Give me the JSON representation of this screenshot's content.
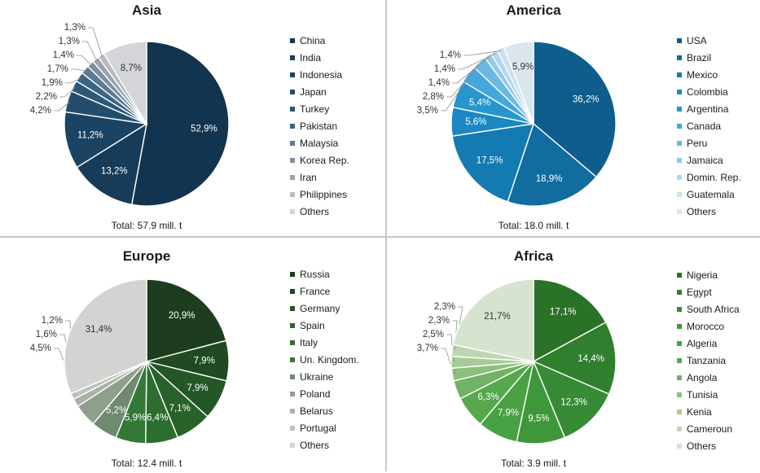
{
  "chart_data": [
    {
      "type": "pie",
      "title": "Asia",
      "total": "Total: 57.9 mill. t",
      "slices": [
        {
          "name": "China",
          "label": "52,9%",
          "value": 52.9,
          "color": "#13344f"
        },
        {
          "name": "India",
          "label": "13,2%",
          "value": 13.2,
          "color": "#173c5a"
        },
        {
          "name": "Indonesia",
          "label": "11,2%",
          "value": 11.2,
          "color": "#1b4464"
        },
        {
          "name": "Japan",
          "label": "4,2%",
          "value": 4.2,
          "color": "#234d6d"
        },
        {
          "name": "Turkey",
          "label": "2,2%",
          "value": 2.2,
          "color": "#2c5777"
        },
        {
          "name": "Pakistan",
          "label": "1,9%",
          "value": 1.9,
          "color": "#3b6584"
        },
        {
          "name": "Malaysia",
          "label": "1,7%",
          "value": 1.7,
          "color": "#5b7a95"
        },
        {
          "name": "Korea Rep.",
          "label": "1,4%",
          "value": 1.4,
          "color": "#7f8fa0"
        },
        {
          "name": "Iran",
          "label": "1,3%",
          "value": 1.3,
          "color": "#9aa2ab"
        },
        {
          "name": "Philippines",
          "label": "1,3%",
          "value": 1.3,
          "color": "#b7bcc1"
        },
        {
          "name": "Others",
          "label": "8,7%",
          "value": 8.7,
          "color": "#d3d5d8"
        }
      ]
    },
    {
      "type": "pie",
      "title": "America",
      "total": "Total: 18.0 mill. t",
      "slices": [
        {
          "name": "USA",
          "label": "36,2%",
          "value": 36.2,
          "color": "#0f5d8c"
        },
        {
          "name": "Brazil",
          "label": "18,9%",
          "value": 18.9,
          "color": "#116c9f"
        },
        {
          "name": "Mexico",
          "label": "17,5%",
          "value": 17.5,
          "color": "#137bb2"
        },
        {
          "name": "Colombia",
          "label": "5,6%",
          "value": 5.6,
          "color": "#1a88c2"
        },
        {
          "name": "Argentina",
          "label": "5,4%",
          "value": 5.4,
          "color": "#2796cf"
        },
        {
          "name": "Canada",
          "label": "3,5%",
          "value": 3.5,
          "color": "#45a7dd"
        },
        {
          "name": "Peru",
          "label": "2,8%",
          "value": 2.8,
          "color": "#6bb8e4"
        },
        {
          "name": "Jamaica",
          "label": "1,4%",
          "value": 1.4,
          "color": "#93c8e8"
        },
        {
          "name": "Domin. Rep.",
          "label": "1,4%",
          "value": 1.4,
          "color": "#b2d6ec"
        },
        {
          "name": "Guatemala",
          "label": "1,4%",
          "value": 1.4,
          "color": "#c8e0ef"
        },
        {
          "name": "Others",
          "label": "5,9%",
          "value": 5.9,
          "color": "#dbe5ee"
        }
      ]
    },
    {
      "type": "pie",
      "title": "Europe",
      "total": "Total: 12.4 mill. t",
      "slices": [
        {
          "name": "Russia",
          "label": "20,9%",
          "value": 20.9,
          "color": "#1d3d1e"
        },
        {
          "name": "France",
          "label": "7,9%",
          "value": 7.9,
          "color": "#204a22"
        },
        {
          "name": "Germany",
          "label": "7,9%",
          "value": 7.9,
          "color": "#245627"
        },
        {
          "name": "Spain",
          "label": "7,1%",
          "value": 7.1,
          "color": "#28622b"
        },
        {
          "name": "Italy",
          "label": "6,4%",
          "value": 6.4,
          "color": "#2d6e30"
        },
        {
          "name": "Un. Kingdom.",
          "label": "5,9%",
          "value": 5.9,
          "color": "#327936"
        },
        {
          "name": "Ukraine",
          "label": "5,2%",
          "value": 5.2,
          "color": "#6f8a6e"
        },
        {
          "name": "Poland",
          "label": "4,5%",
          "value": 4.5,
          "color": "#8e9f8c"
        },
        {
          "name": "Belarus",
          "label": "1,6%",
          "value": 1.6,
          "color": "#a9b4a7"
        },
        {
          "name": "Portugal",
          "label": "1,2%",
          "value": 1.2,
          "color": "#bcc3bb"
        },
        {
          "name": "Others",
          "label": "31,4%",
          "value": 31.4,
          "color": "#d2d4d1"
        }
      ]
    },
    {
      "type": "pie",
      "title": "Africa",
      "total": "Total: 3.9 mill. t",
      "slices": [
        {
          "name": "Nigeria",
          "label": "17,1%",
          "value": 17.1,
          "color": "#2b7229"
        },
        {
          "name": "Egypt",
          "label": "14,4%",
          "value": 14.4,
          "color": "#307f2e"
        },
        {
          "name": "South Africa",
          "label": "12,3%",
          "value": 12.3,
          "color": "#378b34"
        },
        {
          "name": "Morocco",
          "label": "9,5%",
          "value": 9.5,
          "color": "#3f973b"
        },
        {
          "name": "Algeria",
          "label": "7,9%",
          "value": 7.9,
          "color": "#48a142"
        },
        {
          "name": "Tanzania",
          "label": "6,3%",
          "value": 6.3,
          "color": "#57a84d"
        },
        {
          "name": "Angola",
          "label": "3,7%",
          "value": 3.7,
          "color": "#71b264"
        },
        {
          "name": "Tunisia",
          "label": "2,5%",
          "value": 2.5,
          "color": "#8cbf7e"
        },
        {
          "name": "Kenia",
          "label": "2,3%",
          "value": 2.3,
          "color": "#a6cb98"
        },
        {
          "name": "Cameroun",
          "label": "2,3%",
          "value": 2.3,
          "color": "#bdd7b2"
        },
        {
          "name": "Others",
          "label": "21,7%",
          "value": 21.7,
          "color": "#d6e3cf"
        }
      ]
    }
  ]
}
